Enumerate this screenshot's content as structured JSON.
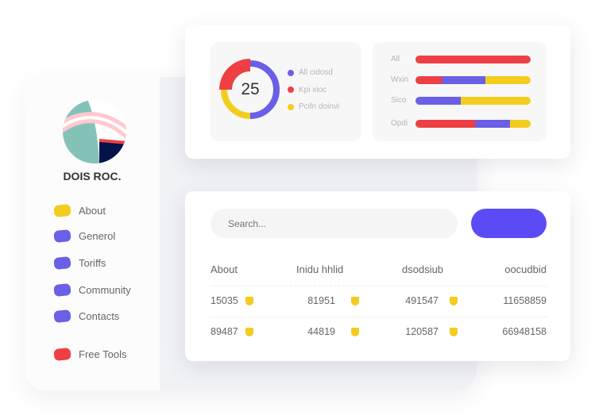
{
  "colors": {
    "blue": "#6a5fe6",
    "red": "#ee4044",
    "yellow": "#f3cd1e",
    "button": "#5b4bf7"
  },
  "sidebar": {
    "brand": "DOIS ROC.",
    "items": [
      {
        "label": "About",
        "color": "#f3cd1e"
      },
      {
        "label": "Generol",
        "color": "#6a5fe6"
      },
      {
        "label": "Toriffs",
        "color": "#6a5fe6"
      },
      {
        "label": "Community",
        "color": "#6a5fe6"
      },
      {
        "label": "Contacts",
        "color": "#6a5fe6"
      },
      {
        "label": "Free Tools",
        "color": "#ee4044"
      }
    ]
  },
  "donut": {
    "center_value": "25",
    "segments": [
      {
        "label": "All cidosd",
        "color": "#6a5fe6",
        "value": 50
      },
      {
        "label": "Kpi xioc",
        "color": "#ee4044",
        "value": 25
      },
      {
        "label": "Pcifn doinvi",
        "color": "#f3cd1e",
        "value": 25
      }
    ]
  },
  "bars": [
    {
      "label": "All",
      "parts": [
        {
          "color": "#ee4044",
          "value": 100
        }
      ]
    },
    {
      "label": "Wxin",
      "parts": [
        {
          "color": "#ee4044",
          "value": 23
        },
        {
          "color": "#6a5fe6",
          "value": 38
        },
        {
          "color": "#f3cd1e",
          "value": 39
        }
      ]
    },
    {
      "label": "Sico",
      "parts": [
        {
          "color": "#6a5fe6",
          "value": 39
        },
        {
          "color": "#f3cd1e",
          "value": 61
        }
      ]
    },
    {
      "label": "Opdi",
      "parts": [
        {
          "color": "#ee4044",
          "value": 52
        },
        {
          "color": "#6a5fe6",
          "value": 30
        },
        {
          "color": "#f3cd1e",
          "value": 18
        }
      ]
    }
  ],
  "search": {
    "placeholder": "Search..."
  },
  "table": {
    "headers": [
      "About",
      "Inidu hhlid",
      "dsodsiub",
      "oocudbid"
    ],
    "rows": [
      [
        "15035",
        "81951",
        "491547",
        "11658859"
      ],
      [
        "89487",
        "44819",
        "120587",
        "66948158"
      ]
    ]
  }
}
